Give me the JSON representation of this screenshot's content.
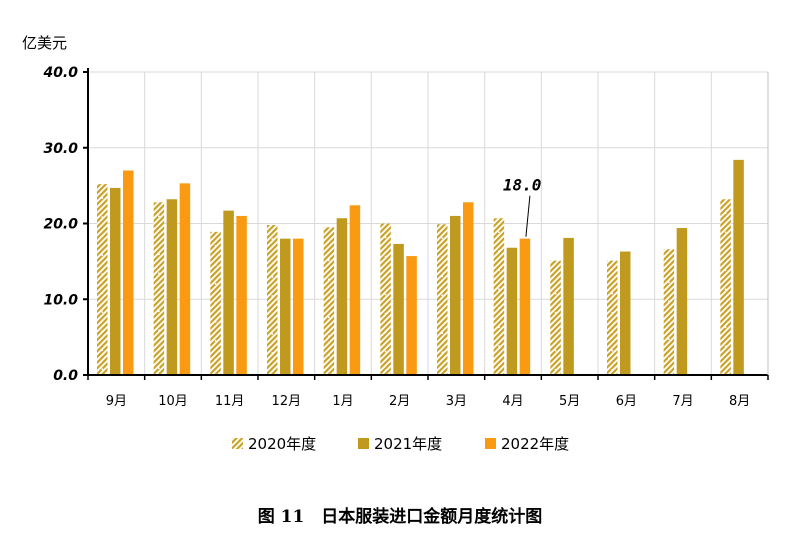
{
  "chart_data": {
    "type": "bar",
    "title": "图 11　日本服装进口金额月度统计图",
    "ylabel": "亿美元",
    "ylim": [
      0,
      40
    ],
    "yticks": [
      "0.0",
      "10.0",
      "20.0",
      "30.0",
      "40.0"
    ],
    "grid": true,
    "legend": "bottom",
    "categories": [
      "9月",
      "10月",
      "11月",
      "12月",
      "1月",
      "2月",
      "3月",
      "4月",
      "5月",
      "6月",
      "7月",
      "8月"
    ],
    "series": [
      {
        "name": "2020年度",
        "color": "#C9A227",
        "pattern": "diagonal-hatch",
        "values": [
          25.2,
          22.8,
          18.9,
          19.8,
          19.5,
          20.0,
          19.9,
          20.7,
          15.1,
          15.1,
          16.6,
          23.2
        ]
      },
      {
        "name": "2021年度",
        "color": "#C09A1E",
        "pattern": "solid",
        "values": [
          24.7,
          23.2,
          21.7,
          18.0,
          20.7,
          17.3,
          21.0,
          16.8,
          18.1,
          16.3,
          19.4,
          28.4
        ]
      },
      {
        "name": "2022年度",
        "color": "#F99A12",
        "pattern": "solid",
        "values": [
          27.0,
          25.3,
          21.0,
          18.0,
          22.4,
          15.7,
          22.8,
          18.0,
          null,
          null,
          null,
          null
        ]
      }
    ],
    "annotations": [
      {
        "text": "18.0",
        "category": "4月",
        "series": "2022年度",
        "value": 18.0
      }
    ]
  }
}
